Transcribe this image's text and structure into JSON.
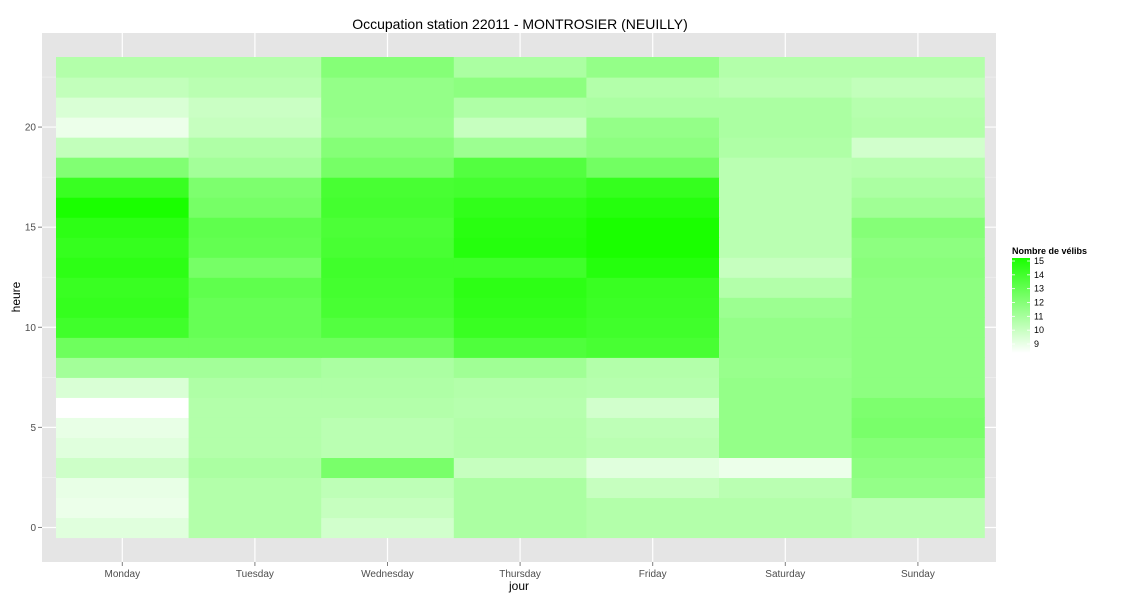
{
  "chart_data": {
    "type": "heatmap",
    "title": "Occupation station 22011 - MONTROSIER (NEUILLY)",
    "xlabel": "jour",
    "ylabel": "heure",
    "categories": [
      "Monday",
      "Tuesday",
      "Wednesday",
      "Thursday",
      "Friday",
      "Saturday",
      "Sunday"
    ],
    "y_ticks": [
      0,
      5,
      10,
      15,
      20
    ],
    "ylim": [
      -0.5,
      23.5
    ],
    "grid": true,
    "legend": {
      "title": "Nombre de vélibs",
      "position": "right",
      "range": [
        9,
        15
      ],
      "ticks": [
        9,
        10,
        11,
        12,
        13,
        14,
        15
      ],
      "low_color": "#ffffff",
      "high_color": "#1aff00"
    },
    "values": [
      [
        9.8,
        11.0,
        10.2,
        11.2,
        11.0,
        11.0,
        10.8
      ],
      [
        9.5,
        11.0,
        10.5,
        11.2,
        11.0,
        11.0,
        10.8
      ],
      [
        9.6,
        11.0,
        10.7,
        11.2,
        10.5,
        10.8,
        11.8
      ],
      [
        10.3,
        11.2,
        12.5,
        10.5,
        9.8,
        9.5,
        12.0
      ],
      [
        9.8,
        11.0,
        10.8,
        11.0,
        10.8,
        11.8,
        12.2
      ],
      [
        9.6,
        11.0,
        10.8,
        11.0,
        10.7,
        11.8,
        12.5
      ],
      [
        9.0,
        11.0,
        11.0,
        10.9,
        10.2,
        11.8,
        12.4
      ],
      [
        10.0,
        11.1,
        11.1,
        11.0,
        10.9,
        11.8,
        12.0
      ],
      [
        11.4,
        11.4,
        11.2,
        11.5,
        11.0,
        11.7,
        12.0
      ],
      [
        12.8,
        12.8,
        12.8,
        13.6,
        13.8,
        11.8,
        12.0
      ],
      [
        14.0,
        13.0,
        13.5,
        14.2,
        14.0,
        11.8,
        12.0
      ],
      [
        14.3,
        13.0,
        13.8,
        14.4,
        14.1,
        11.6,
        12.0
      ],
      [
        14.2,
        13.2,
        13.9,
        14.5,
        14.2,
        11.0,
        12.0
      ],
      [
        14.5,
        12.6,
        14.0,
        14.0,
        14.7,
        10.5,
        12.1
      ],
      [
        14.3,
        13.1,
        13.8,
        14.7,
        15.0,
        10.8,
        12.0
      ],
      [
        14.5,
        13.2,
        13.7,
        14.6,
        15.0,
        10.8,
        12.2
      ],
      [
        15.0,
        12.6,
        13.9,
        14.4,
        14.7,
        10.8,
        11.5
      ],
      [
        14.2,
        12.4,
        13.8,
        13.9,
        14.3,
        10.8,
        11.2
      ],
      [
        12.3,
        11.4,
        12.6,
        13.5,
        12.7,
        10.8,
        10.9
      ],
      [
        10.6,
        11.1,
        12.2,
        11.6,
        12.0,
        11.1,
        10.2
      ],
      [
        9.5,
        10.5,
        11.7,
        10.5,
        11.8,
        11.2,
        11.0
      ],
      [
        10.0,
        10.4,
        11.8,
        11.1,
        11.2,
        11.2,
        10.9
      ],
      [
        10.6,
        10.8,
        11.8,
        12.0,
        11.0,
        10.8,
        10.6
      ],
      [
        11.0,
        11.0,
        12.2,
        11.2,
        11.8,
        11.0,
        11.0
      ]
    ]
  }
}
